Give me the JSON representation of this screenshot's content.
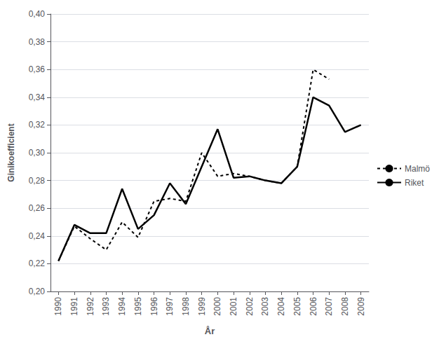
{
  "chart_data": {
    "type": "line",
    "xlabel": "År",
    "ylabel": "Ginikoefficient",
    "x": [
      1990,
      1991,
      1992,
      1993,
      1994,
      1995,
      1996,
      1997,
      1998,
      1999,
      2000,
      2001,
      2002,
      2003,
      2004,
      2005,
      2006,
      2007,
      2008,
      2009
    ],
    "series": [
      {
        "name": "Malmö",
        "color": "#000000",
        "line_style": "dotted",
        "values": [
          0.222,
          0.247,
          0.238,
          0.23,
          0.25,
          0.239,
          0.265,
          0.267,
          0.265,
          0.3,
          0.283,
          0.285,
          0.283,
          0.28,
          0.278,
          0.29,
          0.36,
          0.353,
          null,
          null
        ]
      },
      {
        "name": "Riket",
        "color": "#000000",
        "line_style": "solid",
        "values": [
          0.222,
          0.248,
          0.242,
          0.242,
          0.274,
          0.245,
          0.255,
          0.278,
          0.263,
          0.29,
          0.317,
          0.282,
          0.283,
          0.28,
          0.278,
          0.29,
          0.34,
          0.334,
          0.315,
          0.32
        ]
      }
    ],
    "xlim": [
      1989.5,
      2009.5
    ],
    "xticks": [
      1990,
      1991,
      1992,
      1993,
      1994,
      1995,
      1996,
      1997,
      1998,
      1999,
      2000,
      2001,
      2002,
      2003,
      2004,
      2005,
      2006,
      2007,
      2008,
      2009
    ],
    "ylim": [
      0.2,
      0.4
    ],
    "yticks": [
      {
        "value": 0.2,
        "label": "0,20"
      },
      {
        "value": 0.22,
        "label": "0,22"
      },
      {
        "value": 0.24,
        "label": "0,24"
      },
      {
        "value": 0.26,
        "label": "0,26"
      },
      {
        "value": 0.28,
        "label": "0,28"
      },
      {
        "value": 0.3,
        "label": "0,30"
      },
      {
        "value": 0.32,
        "label": "0,32"
      },
      {
        "value": 0.34,
        "label": "0,34"
      },
      {
        "value": 0.36,
        "label": "0,36"
      },
      {
        "value": 0.38,
        "label": "0,38"
      },
      {
        "value": 0.4,
        "label": "0,40"
      }
    ],
    "grid": true,
    "legend": "right"
  }
}
